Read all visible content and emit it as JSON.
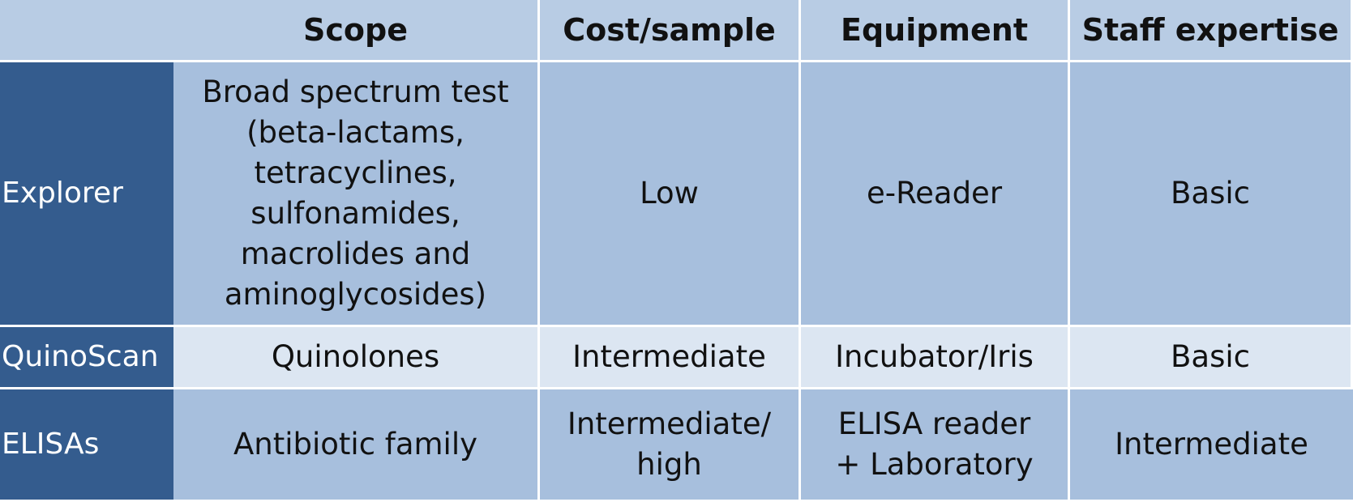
{
  "table": {
    "columns": [
      "",
      "Scope",
      "Cost/sample",
      "Equipment",
      "Staff expertise"
    ],
    "rows": [
      {
        "label": "Explorer",
        "scope": "Broad spectrum test\n(beta-lactams,\ntetracyclines,\nsulfonamides,\nmacrolides and\naminoglycosides)",
        "cost": "Low",
        "equipment": "e-Reader",
        "staff": "Basic"
      },
      {
        "label": "QuinoScan",
        "scope": "Quinolones",
        "cost": "Intermediate",
        "equipment": "Incubator/Iris",
        "staff": "Basic"
      },
      {
        "label": "ELISAs",
        "scope": "Antibiotic family",
        "cost": "Intermediate/\nhigh",
        "equipment": "ELISA reader\n+ Laboratory",
        "staff": "Intermediate"
      }
    ]
  },
  "colors": {
    "header_bg": "#b8cce4",
    "row_label_bg": "#345c8e",
    "body_dark": "#a7bfdd",
    "body_light": "#dce6f2"
  }
}
